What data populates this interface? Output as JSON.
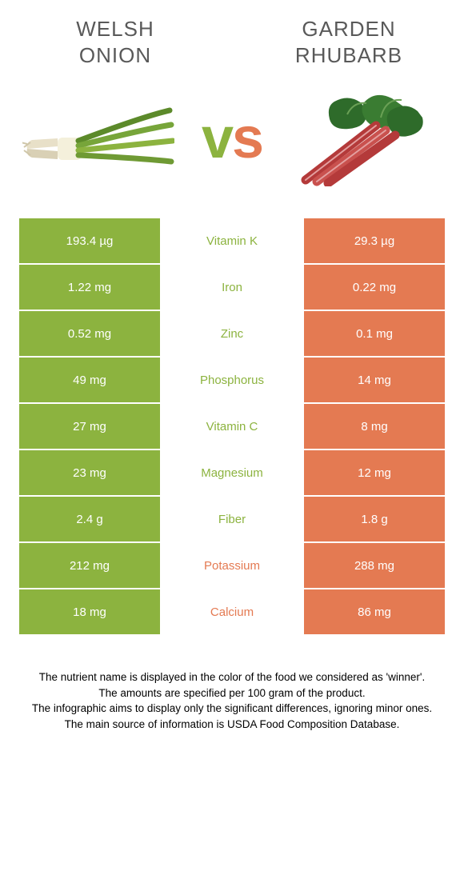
{
  "colors": {
    "left": "#8cb33f",
    "right": "#e47a52",
    "title": "#595959",
    "title_fontsize": 26
  },
  "left_food": {
    "name_line1": "Welsh",
    "name_line2": "onion"
  },
  "right_food": {
    "name_line1": "Garden",
    "name_line2": "rhubarb"
  },
  "vs": {
    "v": "v",
    "s": "s"
  },
  "rows": [
    {
      "nutrient": "Vitamin K",
      "left": "193.4 µg",
      "right": "29.3 µg",
      "winner": "left"
    },
    {
      "nutrient": "Iron",
      "left": "1.22 mg",
      "right": "0.22 mg",
      "winner": "left"
    },
    {
      "nutrient": "Zinc",
      "left": "0.52 mg",
      "right": "0.1 mg",
      "winner": "left"
    },
    {
      "nutrient": "Phosphorus",
      "left": "49 mg",
      "right": "14 mg",
      "winner": "left"
    },
    {
      "nutrient": "Vitamin C",
      "left": "27 mg",
      "right": "8 mg",
      "winner": "left"
    },
    {
      "nutrient": "Magnesium",
      "left": "23 mg",
      "right": "12 mg",
      "winner": "left"
    },
    {
      "nutrient": "Fiber",
      "left": "2.4 g",
      "right": "1.8 g",
      "winner": "left"
    },
    {
      "nutrient": "Potassium",
      "left": "212 mg",
      "right": "288 mg",
      "winner": "right"
    },
    {
      "nutrient": "Calcium",
      "left": "18 mg",
      "right": "86 mg",
      "winner": "right"
    }
  ],
  "footer": {
    "l1": "The nutrient name is displayed in the color of the food we considered as 'winner'.",
    "l2": "The amounts are specified per 100 gram of the product.",
    "l3": "The infographic aims to display only the significant differences, ignoring minor ones.",
    "l4": "The main source of information is USDA Food Composition Database."
  }
}
